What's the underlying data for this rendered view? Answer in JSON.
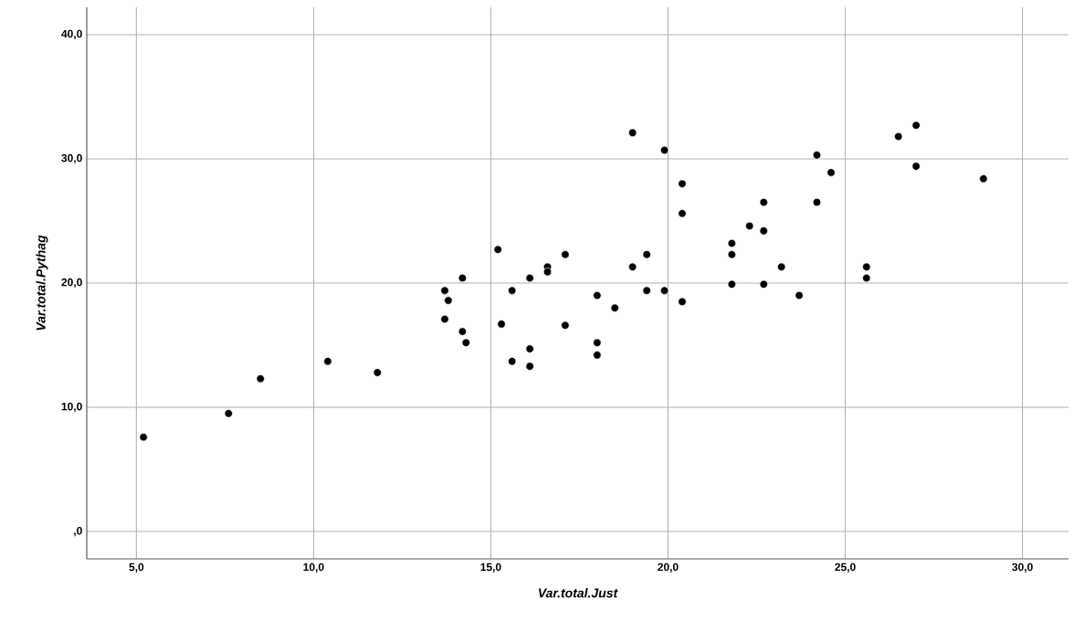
{
  "chart_data": {
    "type": "scatter",
    "xlabel": "Var.total.Just",
    "ylabel": "Var.total.Pythag",
    "xlim": [
      3.6,
      31.3
    ],
    "ylim": [
      -2.2,
      42.2
    ],
    "xticks": [
      {
        "value": 5,
        "label": "5,0"
      },
      {
        "value": 10,
        "label": "10,0"
      },
      {
        "value": 15,
        "label": "15,0"
      },
      {
        "value": 20,
        "label": "20,0"
      },
      {
        "value": 25,
        "label": "25,0"
      },
      {
        "value": 30,
        "label": "30,0"
      }
    ],
    "yticks": [
      {
        "value": 0,
        "label": ",0"
      },
      {
        "value": 10,
        "label": "10,0"
      },
      {
        "value": 20,
        "label": "20,0"
      },
      {
        "value": 30,
        "label": "30,0"
      },
      {
        "value": 40,
        "label": "40,0"
      }
    ],
    "grid": true,
    "series": [
      {
        "color": "#000000",
        "x": [
          5.2,
          7.6,
          8.5,
          10.4,
          11.8,
          13.7,
          13.8,
          13.7,
          14.2,
          14.2,
          14.3,
          15.2,
          15.3,
          15.6,
          15.6,
          16.1,
          16.1,
          16.1,
          16.6,
          16.6,
          17.1,
          17.1,
          18.0,
          18.0,
          18.0,
          18.5,
          19.0,
          19.0,
          19.4,
          19.4,
          19.9,
          19.9,
          20.4,
          20.4,
          20.4,
          21.8,
          21.8,
          21.8,
          22.3,
          22.7,
          22.7,
          22.7,
          23.2,
          23.7,
          24.2,
          24.2,
          24.6,
          25.6,
          25.6,
          26.5,
          27.0,
          27.0,
          28.9
        ],
        "values": [
          7.6,
          9.5,
          12.3,
          13.7,
          12.8,
          19.4,
          18.6,
          17.1,
          20.4,
          16.1,
          15.2,
          22.7,
          16.7,
          19.4,
          13.7,
          20.4,
          14.7,
          13.3,
          21.3,
          20.9,
          22.3,
          16.6,
          19.0,
          15.2,
          14.2,
          18.0,
          32.1,
          21.3,
          22.3,
          19.4,
          30.7,
          19.4,
          28.0,
          25.6,
          18.5,
          23.2,
          22.3,
          19.9,
          24.6,
          26.5,
          24.2,
          19.9,
          21.3,
          19.0,
          30.3,
          26.5,
          28.9,
          21.3,
          20.4,
          31.8,
          32.7,
          29.4,
          28.4
        ]
      }
    ]
  }
}
